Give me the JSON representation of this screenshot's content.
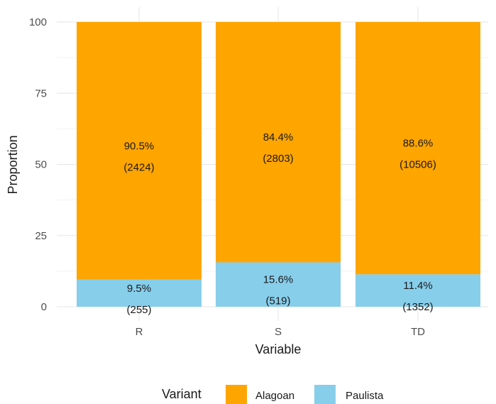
{
  "chart_data": {
    "type": "bar",
    "stacked": true,
    "categories": [
      "R",
      "S",
      "TD"
    ],
    "series": [
      {
        "name": "Paulista",
        "color": "#87CEEB",
        "values": [
          9.5,
          15.6,
          11.4
        ],
        "labels": [
          "9.5%",
          "15.6%",
          "11.4%"
        ],
        "counts": [
          "(255)",
          "(519)",
          "(1352)"
        ]
      },
      {
        "name": "Alagoan",
        "color": "#FFA500",
        "values": [
          90.5,
          84.4,
          88.6
        ],
        "labels": [
          "90.5%",
          "84.4%",
          "88.6%"
        ],
        "counts": [
          "(2424)",
          "(2803)",
          "(10506)"
        ]
      }
    ],
    "xlabel": "Variable",
    "ylabel": "Proportion",
    "ylim": [
      0,
      100
    ],
    "yticks": [
      0,
      25,
      50,
      75,
      100
    ],
    "grid": true,
    "legend": {
      "title": "Variant",
      "position": "bottom",
      "order": [
        "Alagoan",
        "Paulista"
      ]
    }
  }
}
